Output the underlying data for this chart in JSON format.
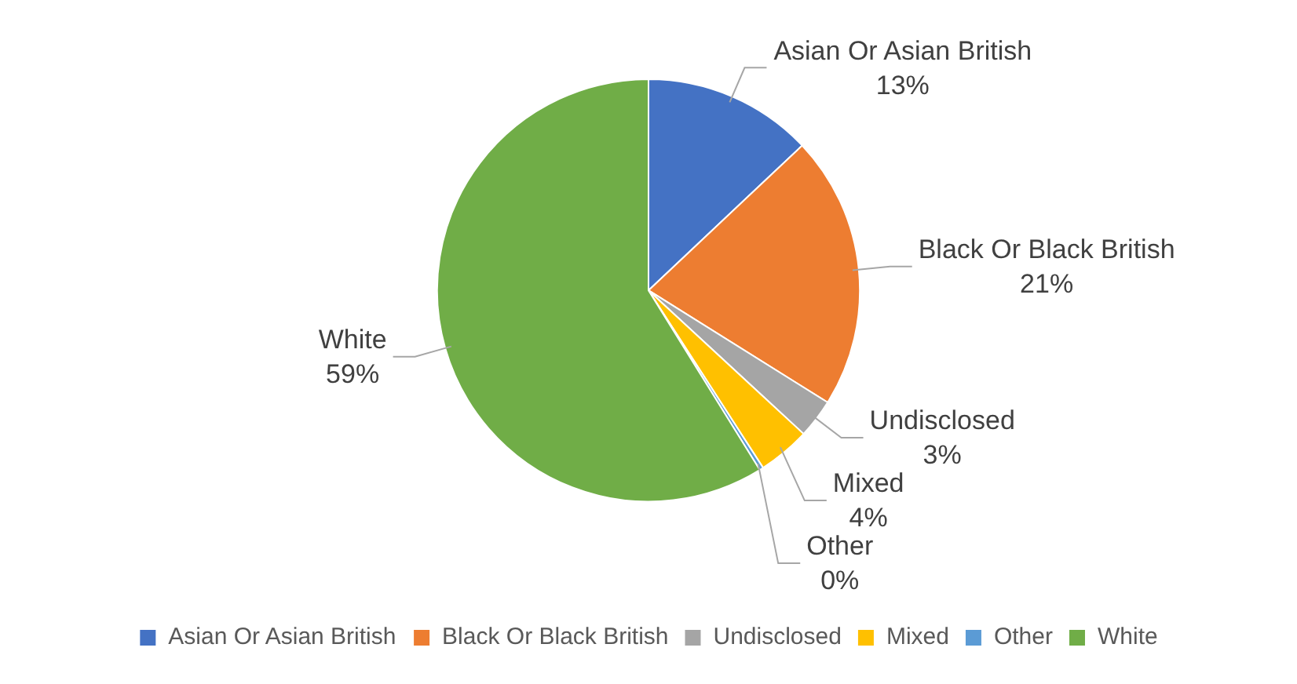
{
  "chart_data": {
    "type": "pie",
    "categories": [
      "Asian Or Asian British",
      "Black Or Black British",
      "Undisclosed",
      "Mixed",
      "Other",
      "White"
    ],
    "values": [
      13,
      21,
      3,
      4,
      0.3,
      59
    ],
    "colors": [
      "#4472c4",
      "#ed7d31",
      "#a5a5a5",
      "#ffc000",
      "#5b9bd5",
      "#70ad47"
    ],
    "value_labels": [
      "13%",
      "21%",
      "3%",
      "4%",
      "0%",
      "59%"
    ],
    "legend": "bottom"
  }
}
